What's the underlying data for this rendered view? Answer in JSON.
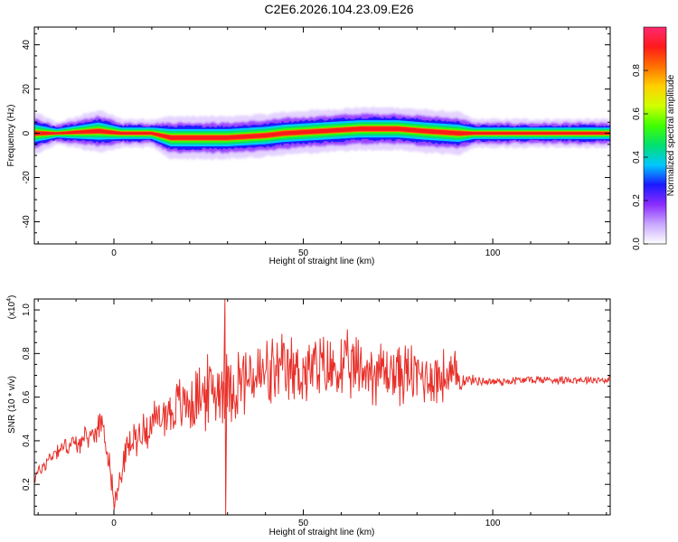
{
  "title": "C2E6.2026.104.23.09.E26",
  "chart_data": [
    {
      "type": "heatmap",
      "xlabel": "Height of straight line (km)",
      "ylabel": "Frequency (Hz)",
      "xlim": [
        -21,
        131
      ],
      "ylim": [
        -50,
        48
      ],
      "xticks": [
        0,
        50,
        100
      ],
      "yticks": [
        -40,
        -20,
        0,
        20,
        40
      ],
      "grid": false,
      "ridge": {
        "description": "dominant narrow band of normalized spectral amplitude near 0 Hz across the whole height range",
        "heights_km": [
          -21,
          -15,
          -4,
          2,
          10,
          15,
          20,
          30,
          40,
          45,
          55,
          65,
          75,
          82,
          91,
          95,
          110,
          131
        ],
        "center_frequency_hz": [
          0,
          0,
          1,
          0,
          0,
          -2,
          -2,
          -2,
          -1,
          0,
          1,
          2,
          2,
          1,
          0,
          0,
          0,
          0
        ],
        "half_width_hz": [
          3,
          1.5,
          3,
          2,
          2,
          3,
          3,
          3,
          3,
          3,
          3,
          3,
          3,
          3,
          3,
          2,
          2,
          2
        ]
      },
      "colorbar": {
        "label": "Normalized spectral amplitude",
        "range": [
          0,
          1
        ],
        "ticks": [
          "0.0",
          "0.2",
          "0.4",
          "0.6",
          "0.8"
        ],
        "colors": [
          "#ffffff",
          "#c9a8ff",
          "#8b2cff",
          "#1a1aff",
          "#00c8ff",
          "#00e070",
          "#40ff00",
          "#d0ff00",
          "#ffd000",
          "#ff7000",
          "#ff1a1a",
          "#ff2a70"
        ]
      }
    },
    {
      "type": "line",
      "xlabel": "Height of straight line (km)",
      "ylabel": "SNR (10 * v/v)",
      "y_multiplier_label": "(x10",
      "y_multiplier_exp": "4",
      "xlim": [
        -21,
        131
      ],
      "ylim": [
        0.06,
        1.05
      ],
      "xticks": [
        0,
        50,
        100
      ],
      "yticks": [
        "0.2",
        "0.4",
        "0.6",
        "0.8",
        "1.0"
      ],
      "grid": false,
      "color": "#e8302a",
      "series": [
        {
          "trend": {
            "x": [
              -21,
              -18,
              -15,
              -12,
              -8,
              -5,
              -3,
              0,
              0.5,
              3,
              6,
              10,
              14,
              18,
              22,
              26,
              29,
              30,
              35,
              40,
              50,
              60,
              70,
              80,
              88,
              93,
              100,
              110,
              120,
              131
            ],
            "y": [
              0.23,
              0.3,
              0.36,
              0.38,
              0.4,
              0.44,
              0.5,
              0.15,
              0.12,
              0.35,
              0.42,
              0.48,
              0.53,
              0.56,
              0.6,
              0.63,
              0.65,
              0.65,
              0.68,
              0.7,
              0.72,
              0.73,
              0.72,
              0.7,
              0.69,
              0.68,
              0.67,
              0.68,
              0.68,
              0.68
            ]
          },
          "noise_amplitude": {
            "x": [
              -21,
              -10,
              0,
              10,
              20,
              30,
              50,
              70,
              90,
              93,
              131
            ],
            "y": [
              0.03,
              0.04,
              0.05,
              0.08,
              0.13,
              0.15,
              0.14,
              0.13,
              0.11,
              0.02,
              0.015
            ]
          },
          "spikes": {
            "x": [
              29.3,
              29.5
            ],
            "y": [
              1.05,
              0.06
            ]
          }
        }
      ]
    }
  ]
}
